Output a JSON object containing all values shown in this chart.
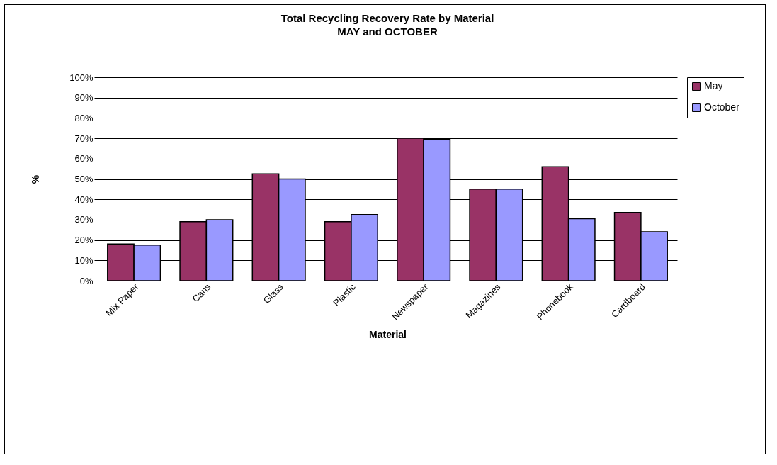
{
  "chart_data": {
    "type": "bar",
    "title": "Total Recycling Recovery Rate by Material",
    "subtitle": "MAY and OCTOBER",
    "xlabel": "Material",
    "ylabel": "%",
    "categories": [
      "Mix Paper",
      "Cans",
      "Glass",
      "Plastic",
      "Newspaper",
      "Magazines",
      "Phonebook",
      "Cardboard"
    ],
    "series": [
      {
        "name": "May",
        "color": "#993366",
        "values": [
          18,
          29,
          52.5,
          29,
          70,
          45,
          56,
          33.5
        ]
      },
      {
        "name": "October",
        "color": "#9999ff",
        "values": [
          17.5,
          30,
          50,
          32.5,
          69.5,
          45,
          30.5,
          24
        ]
      }
    ],
    "ylim": [
      0,
      100
    ],
    "yticks": [
      {
        "value": 0,
        "label": "0%"
      },
      {
        "value": 10,
        "label": "10%"
      },
      {
        "value": 20,
        "label": "20%"
      },
      {
        "value": 30,
        "label": "30%"
      },
      {
        "value": 40,
        "label": "40%"
      },
      {
        "value": 50,
        "label": "50%"
      },
      {
        "value": 60,
        "label": "60%"
      },
      {
        "value": 70,
        "label": "70%"
      },
      {
        "value": 80,
        "label": "80%"
      },
      {
        "value": 90,
        "label": "90%"
      },
      {
        "value": 100,
        "label": "100%"
      }
    ],
    "grid": "y",
    "legend": "right"
  }
}
